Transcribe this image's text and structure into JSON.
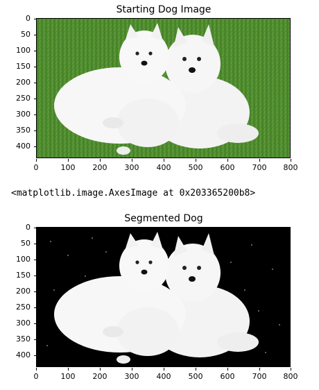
{
  "plot1": {
    "title": "Starting Dog Image",
    "yticks": [
      "0",
      "50",
      "100",
      "150",
      "200",
      "250",
      "300",
      "350",
      "400"
    ],
    "xticks": [
      "0",
      "100",
      "200",
      "300",
      "400",
      "500",
      "600",
      "700",
      "800"
    ]
  },
  "output_text": "<matplotlib.image.AxesImage at 0x203365200b8>",
  "plot2": {
    "title": "Segmented Dog",
    "yticks": [
      "0",
      "50",
      "100",
      "150",
      "200",
      "250",
      "300",
      "350",
      "400"
    ],
    "xticks": [
      "0",
      "100",
      "200",
      "300",
      "400",
      "500",
      "600",
      "700",
      "800"
    ]
  },
  "colors": {
    "grass": "#4c8a2e",
    "fur": "#f4f4f4",
    "background_segmented": "#000000"
  }
}
